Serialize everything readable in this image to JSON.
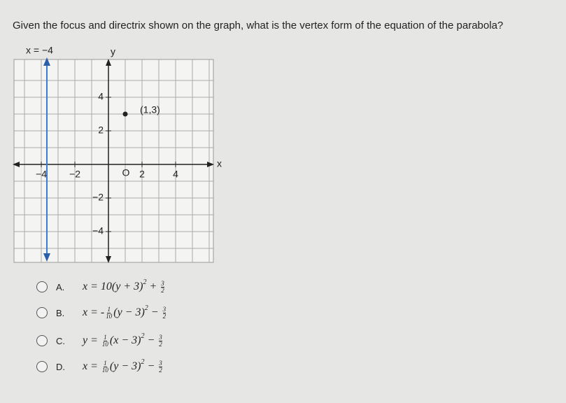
{
  "question": "Given the focus and directrix shown on the graph, what is the vertex form of the equation of the parabola?",
  "graph": {
    "directrix_label": "x = −4",
    "y_axis_label": "y",
    "x_axis_label": "x",
    "origin_label": "O",
    "focus_label": "(1,3)",
    "x_tick_labels": [
      "−4",
      "−2",
      "2",
      "4"
    ],
    "y_tick_labels": [
      "4",
      "2",
      "−2",
      "−4"
    ]
  },
  "options": [
    {
      "letter": "A.",
      "parts": [
        "x = 10(y + 3)",
        {
          "sup": "2"
        },
        " + ",
        {
          "num": "3",
          "den": "2"
        }
      ]
    },
    {
      "letter": "B.",
      "parts": [
        "x = -",
        {
          "num": "1",
          "den": "10"
        },
        "(y − 3)",
        {
          "sup": "2"
        },
        " − ",
        {
          "num": "3",
          "den": "2"
        }
      ]
    },
    {
      "letter": "C.",
      "parts": [
        "y = ",
        {
          "num": "1",
          "den": "10"
        },
        "(x − 3)",
        {
          "sup": "2"
        },
        " − ",
        {
          "num": "3",
          "den": "2"
        }
      ]
    },
    {
      "letter": "D.",
      "parts": [
        "x = ",
        {
          "num": "1",
          "den": "10"
        },
        "(y − 3)",
        {
          "sup": "2"
        },
        " − ",
        {
          "num": "3",
          "den": "2"
        }
      ]
    }
  ]
}
